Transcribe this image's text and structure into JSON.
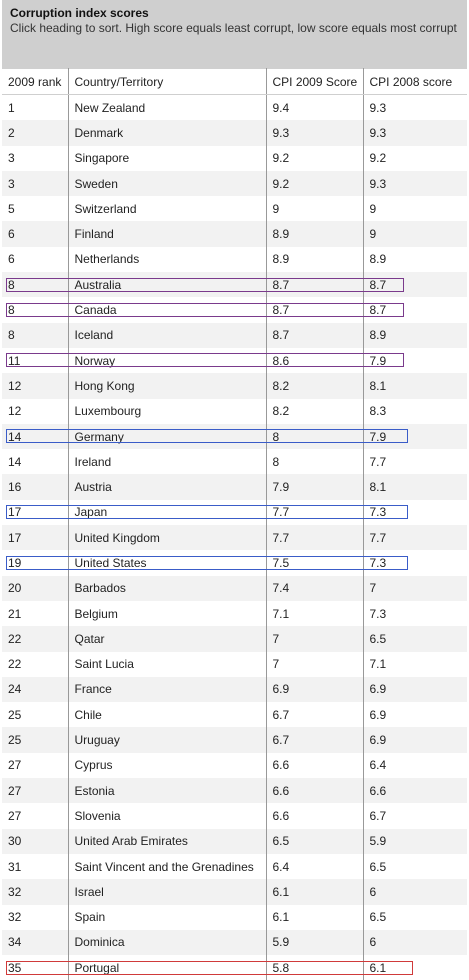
{
  "header": {
    "title": "Corruption index scores",
    "subtitle": "Click heading to sort. High score equals least corrupt, low score equals most corrupt"
  },
  "columns": [
    "2009 rank",
    "Country/Territory",
    "CPI 2009 Score",
    "CPI 2008 score"
  ],
  "rows": [
    {
      "rank": "1",
      "country": "New Zealand",
      "s2009": "9.4",
      "s2008": "9.3"
    },
    {
      "rank": "2",
      "country": "Denmark",
      "s2009": "9.3",
      "s2008": "9.3"
    },
    {
      "rank": "3",
      "country": "Singapore",
      "s2009": "9.2",
      "s2008": "9.2"
    },
    {
      "rank": "3",
      "country": "Sweden",
      "s2009": "9.2",
      "s2008": "9.3"
    },
    {
      "rank": "5",
      "country": "Switzerland",
      "s2009": "9",
      "s2008": "9"
    },
    {
      "rank": "6",
      "country": "Finland",
      "s2009": "8.9",
      "s2008": "9"
    },
    {
      "rank": "6",
      "country": "Netherlands",
      "s2009": "8.9",
      "s2008": "8.9"
    },
    {
      "rank": "8",
      "country": "Australia",
      "s2009": "8.7",
      "s2008": "8.7",
      "highlight": "#7a3a8c"
    },
    {
      "rank": "8",
      "country": "Canada",
      "s2009": "8.7",
      "s2008": "8.7",
      "highlight": "#7a3a8c"
    },
    {
      "rank": "8",
      "country": "Iceland",
      "s2009": "8.7",
      "s2008": "8.9"
    },
    {
      "rank": "11",
      "country": "Norway",
      "s2009": "8.6",
      "s2008": "7.9",
      "highlight": "#7a3a8c"
    },
    {
      "rank": "12",
      "country": "Hong Kong",
      "s2009": "8.2",
      "s2008": "8.1"
    },
    {
      "rank": "12",
      "country": "Luxembourg",
      "s2009": "8.2",
      "s2008": "8.3"
    },
    {
      "rank": "14",
      "country": "Germany",
      "s2009": "8",
      "s2008": "7.9",
      "highlight": "#3a5cc8"
    },
    {
      "rank": "14",
      "country": "Ireland",
      "s2009": "8",
      "s2008": "7.7"
    },
    {
      "rank": "16",
      "country": "Austria",
      "s2009": "7.9",
      "s2008": "8.1"
    },
    {
      "rank": "17",
      "country": "Japan",
      "s2009": "7.7",
      "s2008": "7.3",
      "highlight": "#3a5cc8"
    },
    {
      "rank": "17",
      "country": "United Kingdom",
      "s2009": "7.7",
      "s2008": "7.7"
    },
    {
      "rank": "19",
      "country": "United States",
      "s2009": "7.5",
      "s2008": "7.3",
      "highlight": "#3a5cc8"
    },
    {
      "rank": "20",
      "country": "Barbados",
      "s2009": "7.4",
      "s2008": "7"
    },
    {
      "rank": "21",
      "country": "Belgium",
      "s2009": "7.1",
      "s2008": "7.3"
    },
    {
      "rank": "22",
      "country": "Qatar",
      "s2009": "7",
      "s2008": "6.5"
    },
    {
      "rank": "22",
      "country": "Saint Lucia",
      "s2009": "7",
      "s2008": "7.1"
    },
    {
      "rank": "24",
      "country": "France",
      "s2009": "6.9",
      "s2008": "6.9"
    },
    {
      "rank": "25",
      "country": "Chile",
      "s2009": "6.7",
      "s2008": "6.9"
    },
    {
      "rank": "25",
      "country": "Uruguay",
      "s2009": "6.7",
      "s2008": "6.9"
    },
    {
      "rank": "27",
      "country": "Cyprus",
      "s2009": "6.6",
      "s2008": "6.4"
    },
    {
      "rank": "27",
      "country": "Estonia",
      "s2009": "6.6",
      "s2008": "6.6"
    },
    {
      "rank": "27",
      "country": "Slovenia",
      "s2009": "6.6",
      "s2008": "6.7"
    },
    {
      "rank": "30",
      "country": "United Arab Emirates",
      "s2009": "6.5",
      "s2008": "5.9"
    },
    {
      "rank": "31",
      "country": "Saint Vincent and the Grenadines",
      "s2009": "6.4",
      "s2008": "6.5"
    },
    {
      "rank": "32",
      "country": "Israel",
      "s2009": "6.1",
      "s2008": "6"
    },
    {
      "rank": "32",
      "country": "Spain",
      "s2009": "6.1",
      "s2008": "6.5"
    },
    {
      "rank": "34",
      "country": "Dominica",
      "s2009": "5.9",
      "s2008": "6"
    },
    {
      "rank": "35",
      "country": "Portugal",
      "s2009": "5.8",
      "s2008": "6.1",
      "highlight": "#d03a3a"
    }
  ]
}
